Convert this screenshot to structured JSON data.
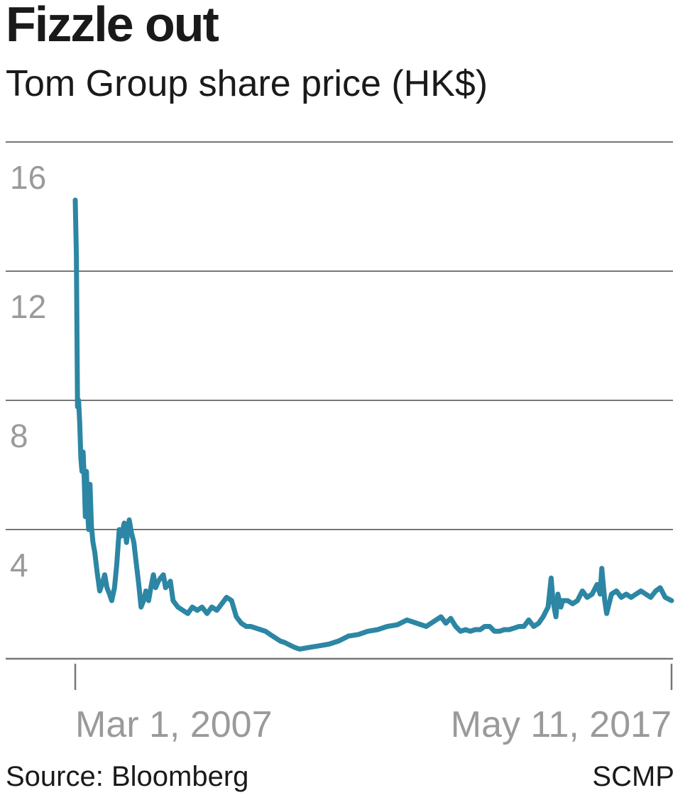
{
  "title": "Fizzle out",
  "subtitle": "Tom Group share price (HK$)",
  "source": "Source: Bloomberg",
  "credit": "SCMP",
  "colors": {
    "line": "#2c86a4",
    "grid": "#777777",
    "tick_text": "#9a9a9a",
    "text": "#1a1a1a"
  },
  "chart_data": {
    "type": "line",
    "title": "Fizzle out",
    "subtitle": "Tom Group share price (HK$)",
    "xlabel": "",
    "ylabel": "",
    "ylim": [
      0,
      16
    ],
    "y_ticks": [
      4,
      8,
      12,
      16
    ],
    "y_tick_labels": [
      "4",
      "8",
      "12",
      "16"
    ],
    "x_start": "2007-03-01",
    "x_end": "2017-05-11",
    "x_tick_labels": [
      "Mar 1, 2007",
      "May 11, 2017"
    ],
    "grid": true,
    "series": [
      {
        "x": [
          "2007-03-01",
          "2007-03-08",
          "2007-03-15",
          "2007-03-22",
          "2007-03-29",
          "2007-04-05",
          "2007-04-12",
          "2007-04-19",
          "2007-04-26",
          "2007-05-03",
          "2007-05-10",
          "2007-05-17",
          "2007-05-24",
          "2007-06-01",
          "2007-06-10",
          "2007-06-20",
          "2007-07-01",
          "2007-07-15",
          "2007-08-01",
          "2007-08-15",
          "2007-09-01",
          "2007-09-15",
          "2007-10-01",
          "2007-10-15",
          "2007-11-01",
          "2007-11-15",
          "2007-12-01",
          "2007-12-15",
          "2008-01-01",
          "2008-01-15",
          "2008-02-01",
          "2008-02-15",
          "2008-03-01",
          "2008-03-15",
          "2008-04-01",
          "2008-04-15",
          "2008-05-01",
          "2008-05-15",
          "2008-06-01",
          "2008-06-15",
          "2008-07-01",
          "2008-07-15",
          "2008-08-01",
          "2008-08-15",
          "2008-09-01",
          "2008-09-15",
          "2008-10-01",
          "2008-10-15",
          "2008-11-01",
          "2008-12-01",
          "2009-01-01",
          "2009-02-01",
          "2009-03-01",
          "2009-04-01",
          "2009-05-01",
          "2009-06-01",
          "2009-07-01",
          "2009-08-01",
          "2009-09-01",
          "2009-10-01",
          "2009-11-01",
          "2009-12-01",
          "2010-01-01",
          "2010-02-01",
          "2010-03-01",
          "2010-04-01",
          "2010-05-01",
          "2010-06-01",
          "2010-07-01",
          "2010-08-01",
          "2010-09-01",
          "2010-10-01",
          "2010-11-01",
          "2010-12-01",
          "2011-01-01",
          "2011-03-01",
          "2011-05-01",
          "2011-07-01",
          "2011-09-01",
          "2011-11-01",
          "2012-01-01",
          "2012-03-01",
          "2012-05-01",
          "2012-07-01",
          "2012-09-01",
          "2012-11-01",
          "2013-01-01",
          "2013-03-01",
          "2013-05-01",
          "2013-06-01",
          "2013-07-01",
          "2013-08-01",
          "2013-09-01",
          "2013-10-01",
          "2013-11-01",
          "2013-12-01",
          "2014-01-01",
          "2014-02-01",
          "2014-03-01",
          "2014-04-01",
          "2014-05-01",
          "2014-06-01",
          "2014-07-01",
          "2014-08-01",
          "2014-09-01",
          "2014-10-01",
          "2014-11-01",
          "2014-12-01",
          "2015-01-01",
          "2015-02-01",
          "2015-03-01",
          "2015-04-01",
          "2015-04-20",
          "2015-05-01",
          "2015-05-20",
          "2015-06-01",
          "2015-06-20",
          "2015-07-01",
          "2015-08-01",
          "2015-09-01",
          "2015-10-01",
          "2015-11-01",
          "2015-12-01",
          "2016-01-01",
          "2016-02-01",
          "2016-02-20",
          "2016-03-01",
          "2016-03-20",
          "2016-04-01",
          "2016-05-01",
          "2016-06-01",
          "2016-07-01",
          "2016-08-01",
          "2016-09-01",
          "2016-10-01",
          "2016-11-01",
          "2016-12-01",
          "2017-01-01",
          "2017-02-01",
          "2017-03-01",
          "2017-04-01",
          "2017-05-11"
        ],
        "values": [
          14.2,
          12.5,
          7.8,
          8.0,
          7.3,
          6.2,
          5.8,
          6.4,
          5.6,
          4.4,
          5.8,
          4.6,
          4.0,
          5.4,
          4.1,
          3.6,
          3.3,
          2.7,
          2.1,
          2.3,
          2.6,
          2.2,
          2.0,
          1.8,
          2.2,
          2.9,
          4.0,
          3.8,
          4.2,
          3.6,
          4.3,
          3.9,
          3.6,
          3.0,
          2.3,
          1.6,
          1.8,
          2.1,
          1.8,
          2.2,
          2.6,
          2.2,
          2.4,
          2.5,
          2.6,
          2.2,
          2.3,
          2.4,
          1.8,
          1.6,
          1.5,
          1.4,
          1.6,
          1.5,
          1.6,
          1.4,
          1.6,
          1.5,
          1.7,
          1.9,
          1.8,
          1.3,
          1.1,
          1.0,
          1.0,
          0.95,
          0.9,
          0.85,
          0.75,
          0.65,
          0.55,
          0.5,
          0.42,
          0.35,
          0.3,
          0.35,
          0.4,
          0.45,
          0.55,
          0.7,
          0.75,
          0.85,
          0.9,
          1.0,
          1.05,
          1.2,
          1.1,
          1.0,
          1.2,
          1.3,
          1.1,
          1.25,
          1.0,
          0.85,
          0.9,
          0.85,
          0.9,
          0.9,
          1.0,
          1.0,
          0.85,
          0.85,
          0.9,
          0.9,
          0.95,
          1.0,
          1.0,
          1.2,
          1.0,
          1.1,
          1.3,
          1.6,
          2.5,
          1.8,
          1.3,
          2.0,
          1.6,
          1.8,
          1.8,
          1.7,
          1.8,
          2.1,
          1.9,
          2.0,
          2.3,
          2.0,
          2.8,
          1.8,
          1.4,
          2.0,
          2.1,
          1.9,
          2.0,
          1.9,
          2.0,
          2.1,
          2.0,
          1.9,
          2.1,
          2.2,
          1.9,
          1.8
        ]
      }
    ]
  }
}
